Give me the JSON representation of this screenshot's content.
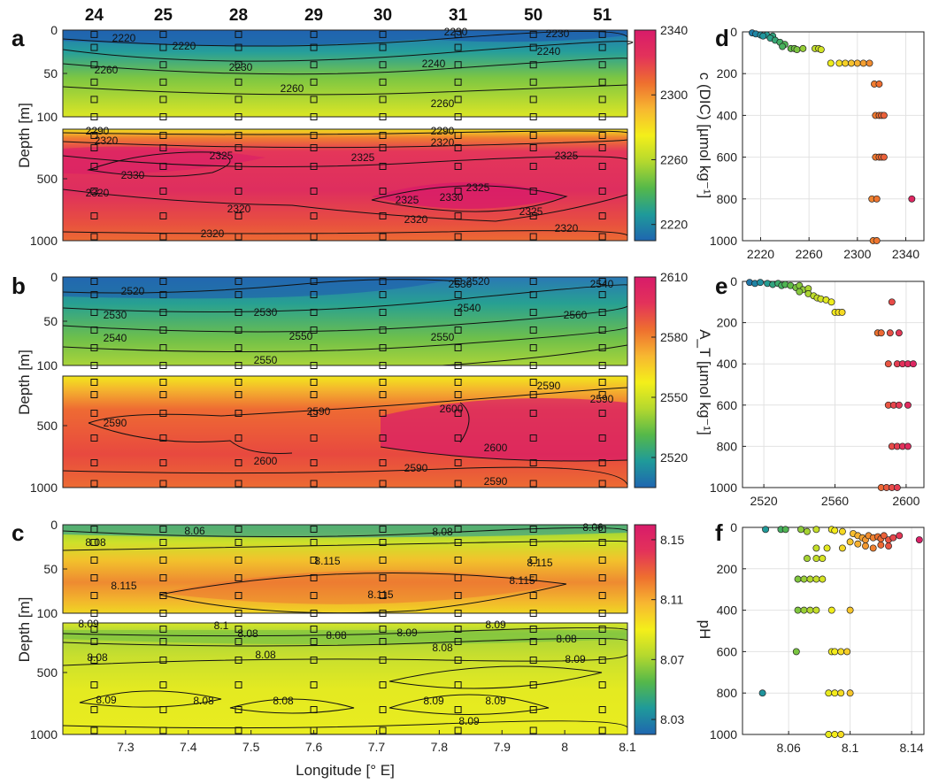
{
  "stations": [
    "24",
    "25",
    "28",
    "29",
    "30",
    "31",
    "50",
    "51"
  ],
  "panel_letters": [
    "a",
    "b",
    "c",
    "d",
    "e",
    "f"
  ],
  "xlabel": "Longitude [° E]",
  "ylabel": "Depth [m]",
  "colors": {
    "scale": [
      "#1f66b0",
      "#1f9a9a",
      "#55b84a",
      "#b4d82e",
      "#f4ef1a",
      "#f7b731",
      "#ee6f2f",
      "#e3325a",
      "#d81b6a"
    ]
  },
  "chart_data": [
    {
      "type": "heatmap",
      "panel": "a",
      "title": "",
      "variable": "c (DIC)",
      "colorbar_label": "c (DIC) [µmol kg⁻¹]",
      "colorbar_ticks": [
        "2340",
        "2300",
        "2260",
        "2220"
      ],
      "colorbar_range": [
        2210,
        2340
      ],
      "xlabel": "Longitude [° E]",
      "ylabel": "Depth [m]",
      "x_ticks": [
        "7.3",
        "7.4",
        "7.5",
        "7.6",
        "7.7",
        "7.8",
        "7.9",
        "8",
        "8.1"
      ],
      "xlim": [
        7.2,
        8.1
      ],
      "upper_ylim": [
        0,
        100
      ],
      "upper_yticks": [
        "0",
        "50",
        "100"
      ],
      "lower_ylim": [
        100,
        1000
      ],
      "lower_yticks": [
        "500",
        "1000"
      ],
      "contour_labels_upper": [
        "2220",
        "2220",
        "2230",
        "2230",
        "2230",
        "2240",
        "2240",
        "2260",
        "2260",
        "2260"
      ],
      "contour_labels_lower": [
        "2290",
        "2290",
        "2320",
        "2320",
        "2325",
        "2325",
        "2325",
        "2330",
        "2325",
        "2325",
        "2330",
        "2325",
        "2320",
        "2320",
        "2320",
        "2320",
        "2320"
      ]
    },
    {
      "type": "heatmap",
      "panel": "b",
      "title": "",
      "variable": "A_T",
      "colorbar_label": "A_T [µmol kg⁻¹]",
      "colorbar_ticks": [
        "2610",
        "2580",
        "2550",
        "2520"
      ],
      "colorbar_range": [
        2505,
        2610
      ],
      "xlabel": "",
      "ylabel": "Depth [m]",
      "upper_ylim": [
        0,
        100
      ],
      "upper_yticks": [
        "0",
        "50",
        "100"
      ],
      "lower_ylim": [
        100,
        1000
      ],
      "lower_yticks": [
        "500",
        "1000"
      ],
      "contour_labels_upper": [
        "2520",
        "2520",
        "2530",
        "2530",
        "2530",
        "2540",
        "2540",
        "2540",
        "2550",
        "2550",
        "2560",
        "2550"
      ],
      "contour_labels_lower": [
        "2590",
        "2590",
        "2590",
        "2600",
        "2600",
        "2590",
        "2600",
        "2590",
        "2590"
      ]
    },
    {
      "type": "heatmap",
      "panel": "c",
      "title": "",
      "variable": "pH",
      "colorbar_label": "pH",
      "colorbar_ticks": [
        "8.15",
        "8.11",
        "8.07",
        "8.03"
      ],
      "colorbar_range": [
        8.02,
        8.16
      ],
      "xlabel": "Longitude [° E]",
      "ylabel": "Depth [m]",
      "upper_ylim": [
        0,
        100
      ],
      "upper_yticks": [
        "0",
        "50",
        "100"
      ],
      "lower_ylim": [
        100,
        1000
      ],
      "lower_yticks": [
        "500",
        "1000"
      ],
      "contour_labels_upper": [
        "8.06",
        "8.06",
        "8.08",
        "8.08",
        "8.115",
        "8.115",
        "8.115",
        "8.115",
        "8.115"
      ],
      "contour_labels_lower": [
        "8.09",
        "8.1",
        "8.08",
        "8.09",
        "8.09",
        "8.08",
        "8.08",
        "8.08",
        "8.09",
        "8.08",
        "8.08",
        "8.09",
        "8.08",
        "8.08",
        "8.09",
        "8.09",
        "8.09"
      ]
    },
    {
      "type": "scatter",
      "panel": "d",
      "title": "",
      "xlabel": "",
      "ylabel": "",
      "xlim": [
        2205,
        2355
      ],
      "x_ticks": [
        "2220",
        "2260",
        "2300",
        "2340"
      ],
      "ylim": [
        0,
        1000
      ],
      "y_ticks": [
        "0",
        "200",
        "400",
        "600",
        "800",
        "1000"
      ],
      "grid": true,
      "points": [
        [
          2213,
          5
        ],
        [
          2216,
          10
        ],
        [
          2220,
          15
        ],
        [
          2225,
          15
        ],
        [
          2222,
          20
        ],
        [
          2230,
          20
        ],
        [
          2228,
          30
        ],
        [
          2232,
          40
        ],
        [
          2236,
          50
        ],
        [
          2240,
          60
        ],
        [
          2238,
          70
        ],
        [
          2245,
          80
        ],
        [
          2248,
          80
        ],
        [
          2250,
          85
        ],
        [
          2255,
          80
        ],
        [
          2265,
          80
        ],
        [
          2268,
          80
        ],
        [
          2270,
          85
        ],
        [
          2278,
          150
        ],
        [
          2285,
          150
        ],
        [
          2290,
          150
        ],
        [
          2295,
          150
        ],
        [
          2300,
          150
        ],
        [
          2305,
          150
        ],
        [
          2310,
          150
        ],
        [
          2314,
          250
        ],
        [
          2318,
          250
        ],
        [
          2315,
          400
        ],
        [
          2318,
          400
        ],
        [
          2320,
          400
        ],
        [
          2322,
          400
        ],
        [
          2315,
          600
        ],
        [
          2318,
          600
        ],
        [
          2320,
          600
        ],
        [
          2322,
          600
        ],
        [
          2312,
          800
        ],
        [
          2316,
          800
        ],
        [
          2345,
          800
        ],
        [
          2313,
          1000
        ],
        [
          2316,
          1000
        ]
      ]
    },
    {
      "type": "scatter",
      "panel": "e",
      "title": "",
      "xlabel": "",
      "ylabel": "",
      "xlim": [
        2508,
        2610
      ],
      "x_ticks": [
        "2520",
        "2560",
        "2600"
      ],
      "ylim": [
        0,
        1000
      ],
      "y_ticks": [
        "0",
        "200",
        "400",
        "600",
        "800",
        "1000"
      ],
      "grid": true,
      "points": [
        [
          2512,
          5
        ],
        [
          2515,
          10
        ],
        [
          2518,
          5
        ],
        [
          2522,
          10
        ],
        [
          2525,
          15
        ],
        [
          2528,
          10
        ],
        [
          2530,
          20
        ],
        [
          2532,
          15
        ],
        [
          2535,
          20
        ],
        [
          2538,
          30
        ],
        [
          2540,
          20
        ],
        [
          2542,
          40
        ],
        [
          2545,
          35
        ],
        [
          2540,
          50
        ],
        [
          2545,
          60
        ],
        [
          2548,
          70
        ],
        [
          2550,
          80
        ],
        [
          2552,
          85
        ],
        [
          2555,
          90
        ],
        [
          2558,
          100
        ],
        [
          2560,
          150
        ],
        [
          2562,
          150
        ],
        [
          2564,
          150
        ],
        [
          2584,
          250
        ],
        [
          2586,
          250
        ],
        [
          2591,
          250
        ],
        [
          2596,
          250
        ],
        [
          2590,
          400
        ],
        [
          2595,
          400
        ],
        [
          2598,
          400
        ],
        [
          2601,
          400
        ],
        [
          2604,
          400
        ],
        [
          2590,
          600
        ],
        [
          2593,
          600
        ],
        [
          2596,
          600
        ],
        [
          2601,
          600
        ],
        [
          2592,
          800
        ],
        [
          2595,
          800
        ],
        [
          2598,
          800
        ],
        [
          2601,
          800
        ],
        [
          2586,
          1000
        ],
        [
          2589,
          1000
        ],
        [
          2592,
          1000
        ],
        [
          2595,
          1000
        ],
        [
          2592,
          100
        ]
      ]
    },
    {
      "type": "scatter",
      "panel": "f",
      "title": "",
      "xlabel": "",
      "ylabel": "",
      "xlim": [
        8.03,
        8.148
      ],
      "x_ticks": [
        "8.06",
        "8.1",
        "8.14"
      ],
      "ylim": [
        0,
        1000
      ],
      "y_ticks": [
        "0",
        "200",
        "400",
        "600",
        "800",
        "1000"
      ],
      "grid": true,
      "points": [
        [
          8.045,
          10
        ],
        [
          8.055,
          10
        ],
        [
          8.058,
          10
        ],
        [
          8.068,
          10
        ],
        [
          8.072,
          20
        ],
        [
          8.078,
          10
        ],
        [
          8.088,
          10
        ],
        [
          8.09,
          15
        ],
        [
          8.095,
          20
        ],
        [
          8.102,
          30
        ],
        [
          8.105,
          40
        ],
        [
          8.108,
          50
        ],
        [
          8.11,
          60
        ],
        [
          8.112,
          40
        ],
        [
          8.115,
          50
        ],
        [
          8.118,
          45
        ],
        [
          8.12,
          55
        ],
        [
          8.122,
          40
        ],
        [
          8.125,
          60
        ],
        [
          8.128,
          50
        ],
        [
          8.132,
          40
        ],
        [
          8.145,
          60
        ],
        [
          8.1,
          70
        ],
        [
          8.105,
          80
        ],
        [
          8.11,
          90
        ],
        [
          8.115,
          100
        ],
        [
          8.12,
          85
        ],
        [
          8.125,
          90
        ],
        [
          8.095,
          100
        ],
        [
          8.085,
          100
        ],
        [
          8.078,
          100
        ],
        [
          8.072,
          150
        ],
        [
          8.078,
          150
        ],
        [
          8.082,
          150
        ],
        [
          8.066,
          250
        ],
        [
          8.07,
          250
        ],
        [
          8.074,
          250
        ],
        [
          8.078,
          250
        ],
        [
          8.082,
          250
        ],
        [
          8.066,
          400
        ],
        [
          8.07,
          400
        ],
        [
          8.074,
          400
        ],
        [
          8.078,
          400
        ],
        [
          8.088,
          400
        ],
        [
          8.1,
          400
        ],
        [
          8.065,
          600
        ],
        [
          8.088,
          600
        ],
        [
          8.09,
          600
        ],
        [
          8.094,
          600
        ],
        [
          8.098,
          600
        ],
        [
          8.043,
          800
        ],
        [
          8.086,
          800
        ],
        [
          8.09,
          800
        ],
        [
          8.094,
          800
        ],
        [
          8.1,
          800
        ],
        [
          8.086,
          1000
        ],
        [
          8.09,
          1000
        ],
        [
          8.094,
          1000
        ]
      ]
    }
  ]
}
